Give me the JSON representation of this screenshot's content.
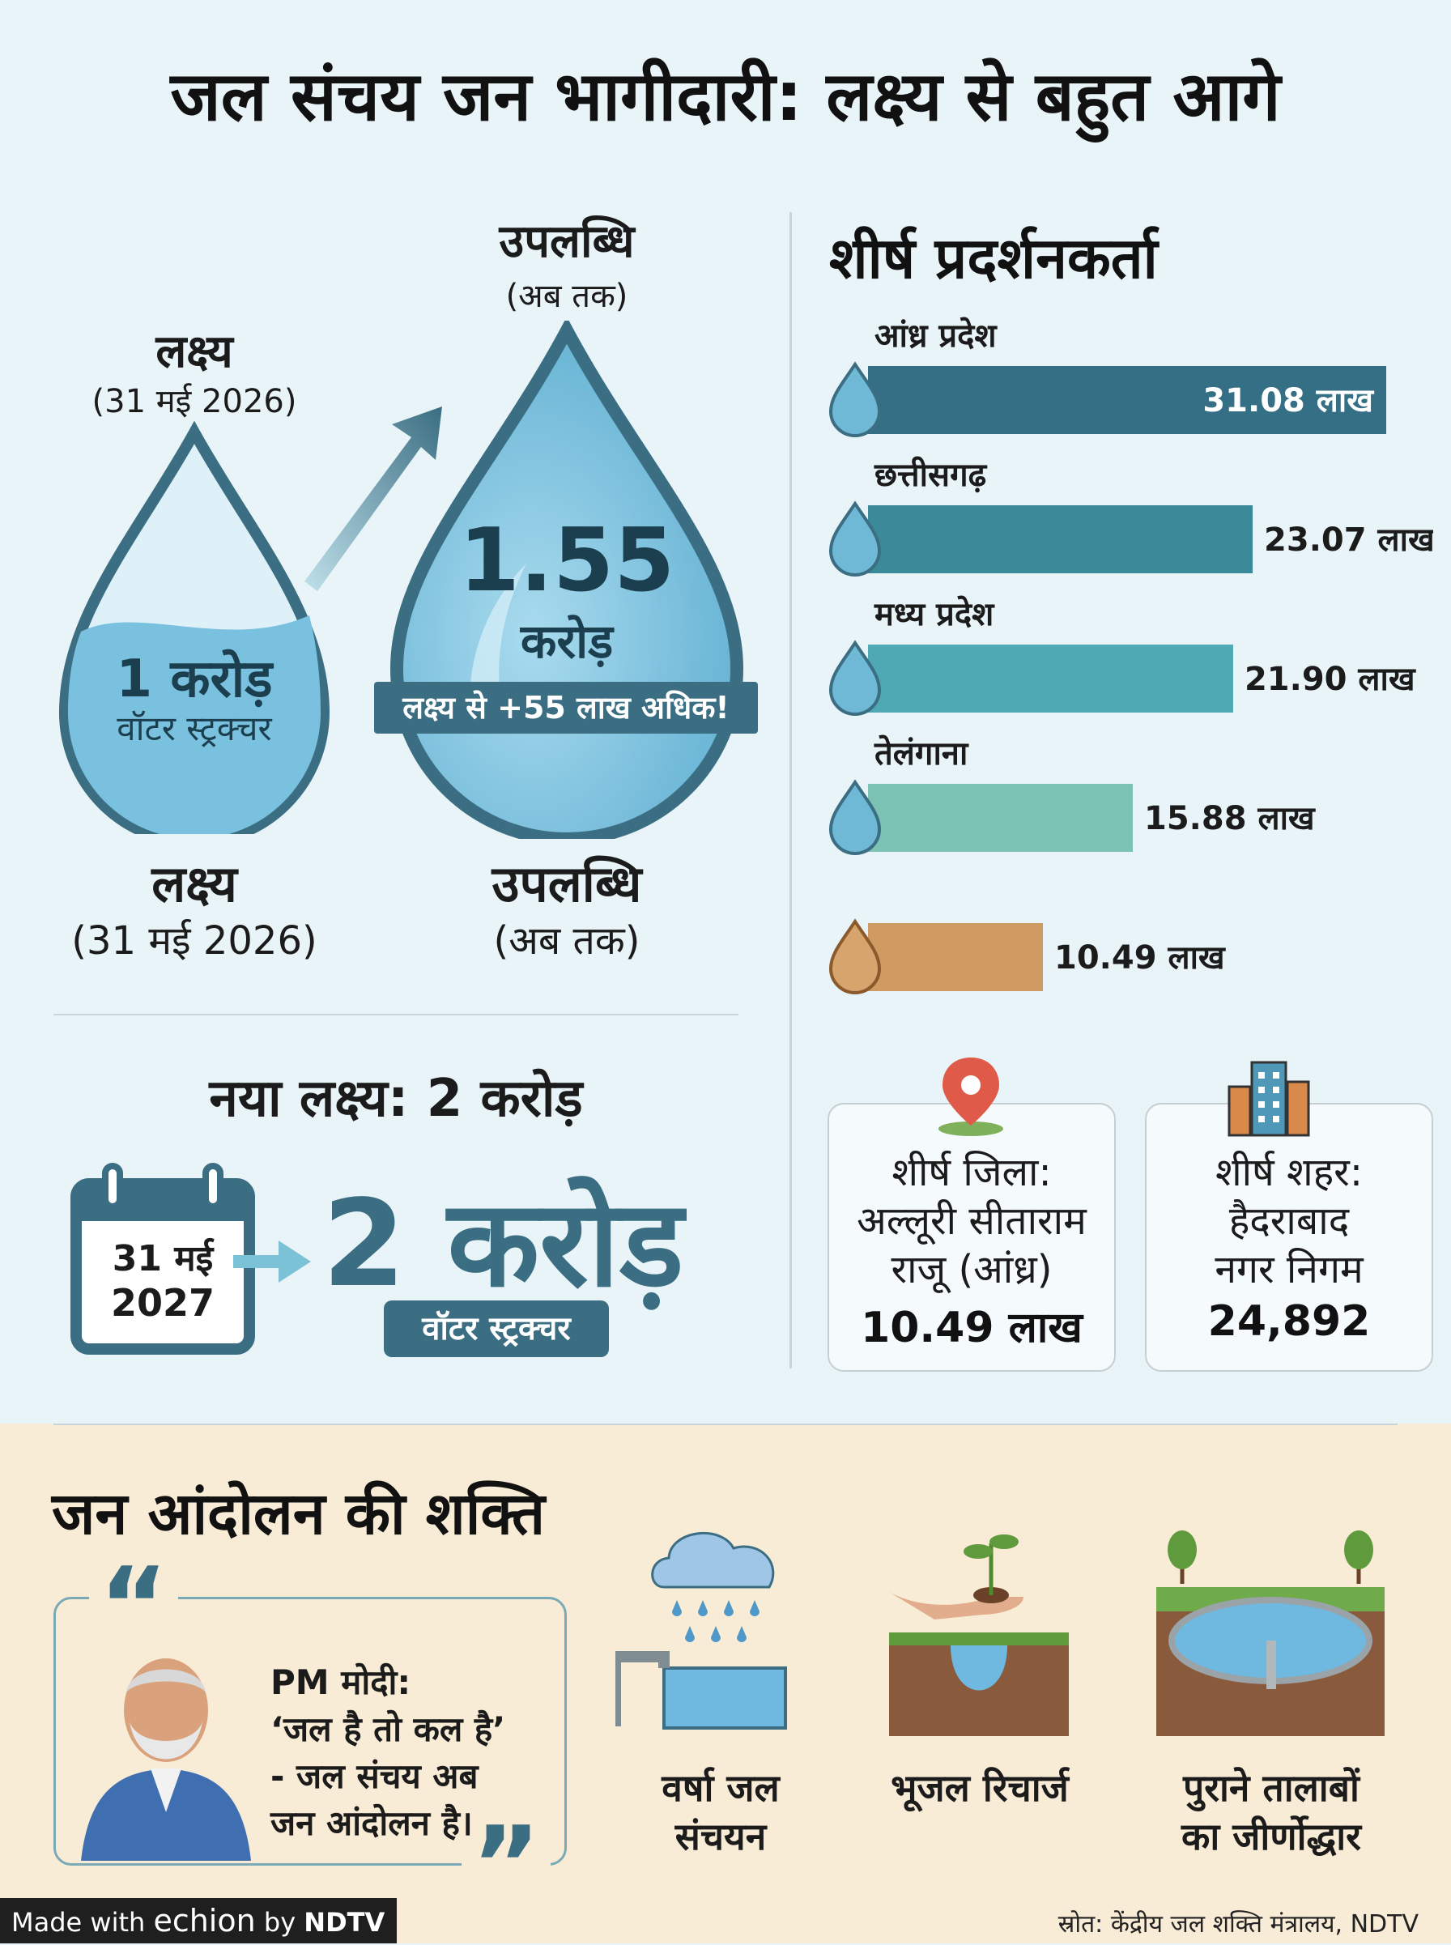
{
  "title": "जल संचय जन भागीदारी: लक्ष्य से बहुत आगे",
  "colors": {
    "dark_teal": "#356f86",
    "teal": "#3b8a99",
    "light_teal": "#4fa9b5",
    "mint": "#7cc2b5",
    "tan": "#cf9b62",
    "accent_red": "#e05a4a"
  },
  "goal_drop": {
    "top_label": "लक्ष्य",
    "top_date": "(31 मई 2026)",
    "value": "1 करोड़",
    "unit": "वॉटर स्ट्रक्चर",
    "bottom_label": "लक्ष्य",
    "bottom_date": "(31 मई 2026)"
  },
  "achievement_drop": {
    "top_label": "उपलब्धि",
    "top_sub": "(अब तक)",
    "value": "1.55",
    "unit": "करोड़",
    "banner": "लक्ष्य से +55 लाख अधिक!",
    "bottom_label": "उपलब्धि",
    "bottom_sub": "(अब तक)"
  },
  "new_target": {
    "heading": "नया लक्ष्य: 2 करोड़",
    "calendar_date_line1": "31 मई",
    "calendar_date_line2": "2027",
    "value": "2 करोड़",
    "badge": "वॉटर स्ट्रक्चर"
  },
  "chart_data": {
    "type": "bar",
    "orientation": "horizontal",
    "title": "शीर्ष प्रदर्शनकर्ता",
    "categories": [
      "आंध्र प्रदेश",
      "छत्तीसगढ़",
      "मध्य प्रदेश",
      "तेलंगाना",
      ""
    ],
    "values": [
      31.08,
      23.07,
      21.9,
      15.88,
      10.49
    ],
    "value_labels": [
      "31.08 लाख",
      "23.07 लाख",
      "21.90 लाख",
      "15.88 लाख",
      "10.49 लाख"
    ],
    "unit": "लाख",
    "bar_colors": [
      "#356f86",
      "#3b8a99",
      "#4fa9b5",
      "#7cc2b5",
      "#cf9b62"
    ],
    "drop_colors": [
      "#6fb8d6",
      "#6fb8d6",
      "#6fb8d6",
      "#6fb8d6",
      "#d6a46c"
    ],
    "xlim": [
      0,
      31.08
    ],
    "grid": false
  },
  "top_district": {
    "title": "शीर्ष जिला:",
    "line2": "अल्लूरी सीताराम",
    "line3": "राजू (आंध्र)",
    "value": "10.49 लाख"
  },
  "top_city": {
    "title": "शीर्ष शहर:",
    "line2": "हैदराबाद",
    "line3": "नगर निगम",
    "value": "24,892"
  },
  "movement": {
    "heading": "जन आंदोलन की शक्ति",
    "quote_open": "“",
    "quote_close": "”",
    "quote_line1": "PM मोदी:",
    "quote_line2": "‘जल है तो कल है’",
    "quote_line3": "- जल संचय अब",
    "quote_line4": "जन आंदोलन है।",
    "items": [
      {
        "line1": "वर्षा जल",
        "line2": "संचयन"
      },
      {
        "line1": "भूजल रिचार्ज",
        "line2": ""
      },
      {
        "line1": "पुराने तालाबों",
        "line2": "का जीर्णोद्धार"
      }
    ]
  },
  "footer": {
    "made_with": "Made with",
    "brand": "echion",
    "by": "by",
    "partner": "NDTV",
    "source": "स्रोत: केंद्रीय जल शक्ति मंत्रालय, NDTV"
  }
}
